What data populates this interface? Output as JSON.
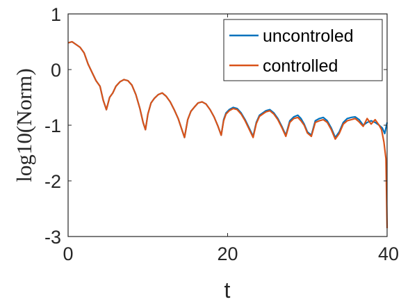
{
  "chart_data": {
    "type": "line",
    "title": "",
    "xlabel": "t",
    "ylabel": "log10(Norm)",
    "xlim": [
      0,
      40
    ],
    "ylim": [
      -3,
      1
    ],
    "xticks": [
      0,
      20,
      40
    ],
    "xtick_labels": [
      "0",
      "20",
      "40"
    ],
    "yticks": [
      -3,
      -2,
      -1,
      0,
      1
    ],
    "ytick_labels": [
      "-3",
      "-2",
      "-1",
      "0",
      "1"
    ],
    "grid": false,
    "legend_position": "top-right",
    "series": [
      {
        "name": "uncontroled",
        "color": "#0072BD",
        "x": [
          0,
          0.5,
          1,
          1.5,
          2,
          2.5,
          3,
          3.5,
          4,
          4.4,
          4.8,
          5.2,
          5.6,
          6,
          6.5,
          7,
          7.5,
          8,
          8.5,
          9,
          9.4,
          9.7,
          10,
          10.4,
          10.8,
          11.3,
          11.8,
          12.3,
          12.8,
          13.3,
          13.8,
          14.2,
          14.6,
          15,
          15.4,
          15.8,
          16.3,
          16.8,
          17.3,
          17.8,
          18.3,
          18.8,
          19.2,
          19.5,
          19.8,
          20.2,
          20.7,
          21.2,
          21.7,
          22.2,
          22.7,
          23.2,
          23.6,
          24,
          24.4,
          24.8,
          25.3,
          25.8,
          26.3,
          26.8,
          27.3,
          27.8,
          28.3,
          28.8,
          29.2,
          29.6,
          30,
          30.5,
          31,
          31.5,
          32,
          32.5,
          33,
          33.5,
          34,
          34.5,
          35,
          35.5,
          36,
          36.5,
          37,
          37.5,
          38,
          38.5,
          39,
          39.4,
          39.7,
          40
        ],
        "y": [
          0.48,
          0.5,
          0.45,
          0.4,
          0.3,
          0.1,
          -0.05,
          -0.2,
          -0.3,
          -0.55,
          -0.72,
          -0.5,
          -0.42,
          -0.3,
          -0.22,
          -0.18,
          -0.2,
          -0.28,
          -0.45,
          -0.7,
          -0.95,
          -1.08,
          -0.8,
          -0.6,
          -0.52,
          -0.45,
          -0.42,
          -0.48,
          -0.58,
          -0.72,
          -0.88,
          -1.05,
          -1.22,
          -0.9,
          -0.75,
          -0.68,
          -0.6,
          -0.58,
          -0.62,
          -0.72,
          -0.85,
          -1.02,
          -1.18,
          -0.9,
          -0.78,
          -0.72,
          -0.68,
          -0.7,
          -0.78,
          -0.9,
          -1.05,
          -1.2,
          -0.95,
          -0.82,
          -0.78,
          -0.74,
          -0.72,
          -0.78,
          -0.88,
          -1.02,
          -1.18,
          -0.92,
          -0.85,
          -0.82,
          -0.88,
          -0.98,
          -1.12,
          -1.18,
          -0.92,
          -0.88,
          -0.86,
          -0.92,
          -1.05,
          -1.22,
          -1.12,
          -0.95,
          -0.88,
          -0.86,
          -0.85,
          -0.9,
          -1.0,
          -0.95,
          -0.92,
          -0.95,
          -1.0,
          -1.05,
          -1.15,
          -0.95
        ]
      },
      {
        "name": "controlled",
        "color": "#D95319",
        "x": [
          0,
          0.5,
          1,
          1.5,
          2,
          2.5,
          3,
          3.5,
          4,
          4.4,
          4.8,
          5.2,
          5.6,
          6,
          6.5,
          7,
          7.5,
          8,
          8.5,
          9,
          9.4,
          9.7,
          10,
          10.4,
          10.8,
          11.3,
          11.8,
          12.3,
          12.8,
          13.3,
          13.8,
          14.2,
          14.6,
          15,
          15.4,
          15.8,
          16.3,
          16.8,
          17.3,
          17.8,
          18.3,
          18.8,
          19.2,
          19.5,
          19.8,
          20.2,
          20.7,
          21.2,
          21.7,
          22.2,
          22.7,
          23.2,
          23.6,
          24,
          24.4,
          24.8,
          25.3,
          25.8,
          26.3,
          26.8,
          27.3,
          27.8,
          28.3,
          28.8,
          29.2,
          29.6,
          30,
          30.5,
          31,
          31.5,
          32,
          32.5,
          33,
          33.5,
          34,
          34.5,
          35,
          35.5,
          36,
          36.5,
          37,
          37.5,
          38,
          38.5,
          39,
          39.3,
          39.6,
          39.85,
          40
        ],
        "y": [
          0.48,
          0.5,
          0.45,
          0.4,
          0.3,
          0.1,
          -0.05,
          -0.2,
          -0.3,
          -0.55,
          -0.72,
          -0.5,
          -0.42,
          -0.3,
          -0.22,
          -0.18,
          -0.2,
          -0.28,
          -0.45,
          -0.7,
          -0.95,
          -1.08,
          -0.8,
          -0.6,
          -0.52,
          -0.45,
          -0.42,
          -0.48,
          -0.58,
          -0.72,
          -0.88,
          -1.05,
          -1.22,
          -0.9,
          -0.75,
          -0.68,
          -0.6,
          -0.58,
          -0.62,
          -0.72,
          -0.85,
          -1.02,
          -1.18,
          -0.92,
          -0.8,
          -0.74,
          -0.7,
          -0.72,
          -0.8,
          -0.92,
          -1.07,
          -1.22,
          -0.97,
          -0.84,
          -0.8,
          -0.76,
          -0.74,
          -0.8,
          -0.9,
          -1.04,
          -1.2,
          -0.95,
          -0.88,
          -0.86,
          -0.92,
          -1.0,
          -1.14,
          -1.2,
          -0.95,
          -0.92,
          -0.9,
          -0.95,
          -1.08,
          -1.25,
          -1.15,
          -0.98,
          -0.92,
          -0.9,
          -0.88,
          -0.94,
          -1.02,
          -0.88,
          -0.98,
          -0.9,
          -1.0,
          -1.08,
          -1.3,
          -1.6,
          -2.85
        ]
      }
    ]
  }
}
